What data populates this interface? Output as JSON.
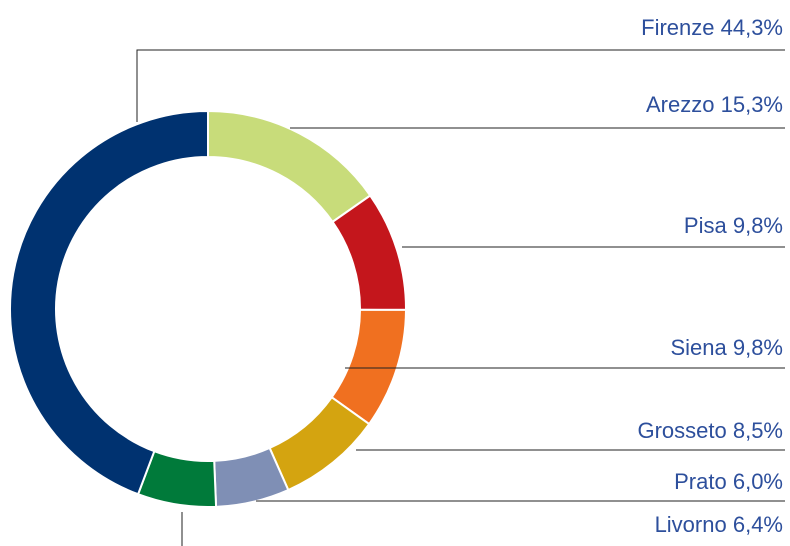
{
  "chart_data": {
    "type": "donut",
    "categories": [
      "Arezzo",
      "Pisa",
      "Siena",
      "Grosseto",
      "Prato",
      "Livorno",
      "Firenze"
    ],
    "values": [
      15.3,
      9.8,
      9.8,
      8.5,
      6.0,
      6.4,
      44.3
    ],
    "value_labels": [
      "15,3%",
      "9,8%",
      "9,8%",
      "8,5%",
      "6,0%",
      "6,4%",
      "44,3%"
    ],
    "colors": [
      "#c8dc7a",
      "#c4161c",
      "#f07020",
      "#d4a410",
      "#7f8fb5",
      "#007a3a",
      "#003270"
    ]
  }
}
